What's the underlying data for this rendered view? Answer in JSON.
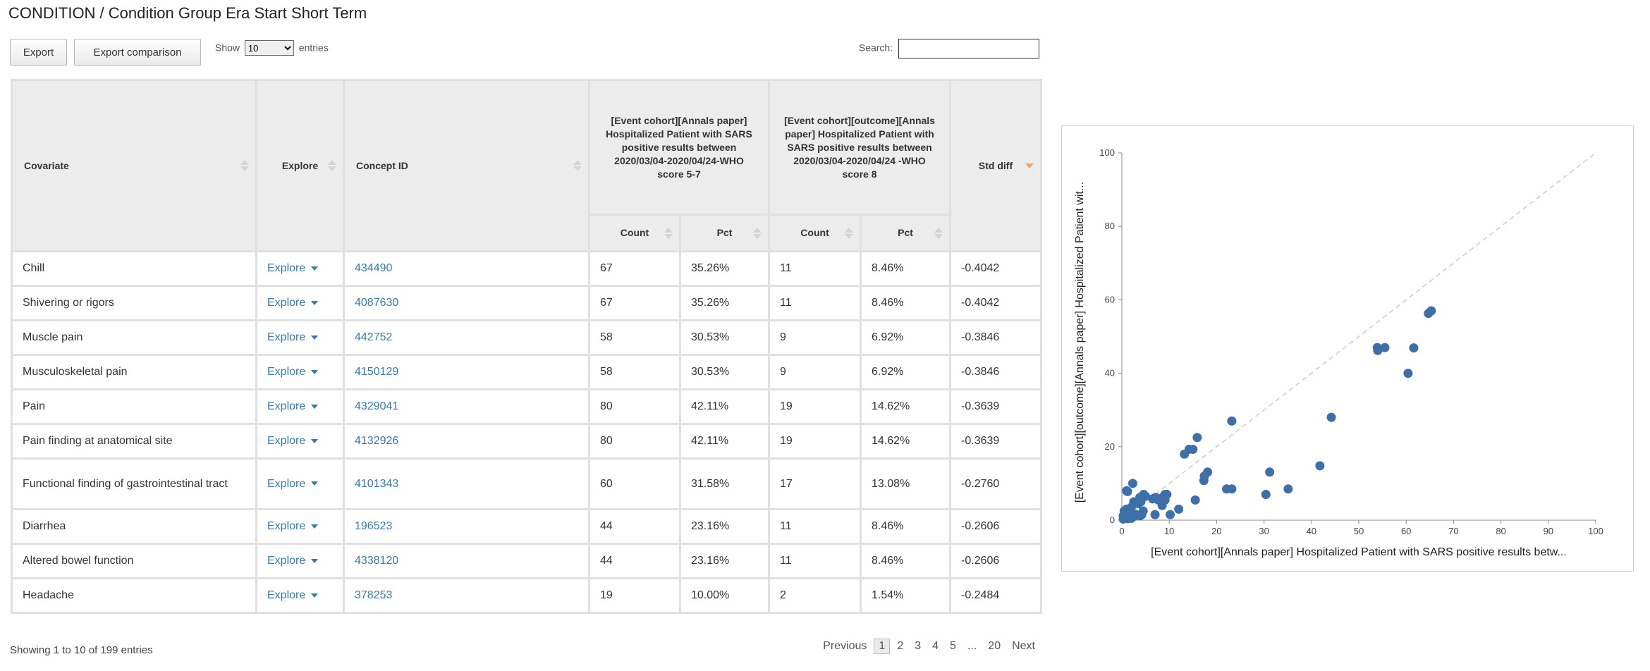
{
  "page": {
    "title": "CONDITION / Condition Group Era Start Short Term"
  },
  "toolbar": {
    "export_label": "Export",
    "export_comparison_label": "Export comparison",
    "show_label": "Show",
    "entries_value": "10",
    "entries_label": "entries",
    "search_label": "Search:",
    "search_value": ""
  },
  "table": {
    "headers": {
      "covariate": "Covariate",
      "explore": "Explore",
      "concept_id": "Concept ID",
      "cohort1": "[Event cohort][Annals paper] Hospitalized Patient with SARS positive results between 2020/03/04-2020/04/24-WHO score 5-7",
      "cohort2": "[Event cohort][outcome][Annals paper] Hospitalized Patient with SARS positive results between 2020/03/04-2020/04/24 -WHO score 8",
      "std_diff": "Std diff",
      "count": "Count",
      "pct": "Pct"
    },
    "rows": [
      {
        "covariate": "Chill",
        "explore": "Explore",
        "concept_id": "434490",
        "count1": "67",
        "pct1": "35.26%",
        "count2": "11",
        "pct2": "8.46%",
        "std_diff": "-0.4042"
      },
      {
        "covariate": "Shivering or rigors",
        "explore": "Explore",
        "concept_id": "4087630",
        "count1": "67",
        "pct1": "35.26%",
        "count2": "11",
        "pct2": "8.46%",
        "std_diff": "-0.4042"
      },
      {
        "covariate": "Muscle pain",
        "explore": "Explore",
        "concept_id": "442752",
        "count1": "58",
        "pct1": "30.53%",
        "count2": "9",
        "pct2": "6.92%",
        "std_diff": "-0.3846"
      },
      {
        "covariate": "Musculoskeletal pain",
        "explore": "Explore",
        "concept_id": "4150129",
        "count1": "58",
        "pct1": "30.53%",
        "count2": "9",
        "pct2": "6.92%",
        "std_diff": "-0.3846"
      },
      {
        "covariate": "Pain",
        "explore": "Explore",
        "concept_id": "4329041",
        "count1": "80",
        "pct1": "42.11%",
        "count2": "19",
        "pct2": "14.62%",
        "std_diff": "-0.3639"
      },
      {
        "covariate": "Pain finding at anatomical site",
        "explore": "Explore",
        "concept_id": "4132926",
        "count1": "80",
        "pct1": "42.11%",
        "count2": "19",
        "pct2": "14.62%",
        "std_diff": "-0.3639"
      },
      {
        "covariate": "Functional finding of gastrointestinal tract",
        "explore": "Explore",
        "concept_id": "4101343",
        "count1": "60",
        "pct1": "31.58%",
        "count2": "17",
        "pct2": "13.08%",
        "std_diff": "-0.2760"
      },
      {
        "covariate": "Diarrhea",
        "explore": "Explore",
        "concept_id": "196523",
        "count1": "44",
        "pct1": "23.16%",
        "count2": "11",
        "pct2": "8.46%",
        "std_diff": "-0.2606"
      },
      {
        "covariate": "Altered bowel function",
        "explore": "Explore",
        "concept_id": "4338120",
        "count1": "44",
        "pct1": "23.16%",
        "count2": "11",
        "pct2": "8.46%",
        "std_diff": "-0.2606"
      },
      {
        "covariate": "Headache",
        "explore": "Explore",
        "concept_id": "378253",
        "count1": "19",
        "pct1": "10.00%",
        "count2": "2",
        "pct2": "1.54%",
        "std_diff": "-0.2484"
      }
    ]
  },
  "footer": {
    "info": "Showing 1 to 10 of 199 entries",
    "pagination": {
      "previous": "Previous",
      "pages": [
        "1",
        "2",
        "3",
        "4",
        "5",
        "...",
        "20"
      ],
      "current": "1",
      "next": "Next"
    }
  },
  "chart_data": {
    "type": "scatter",
    "xlabel": "[Event cohort][Annals paper] Hospitalized Patient with SARS positive results betw...",
    "ylabel": "[Event cohort][outcome][Annals paper] Hospitalized Patient wit...",
    "xlim": [
      0,
      100
    ],
    "ylim": [
      0,
      100
    ],
    "xticks": [
      0,
      10,
      20,
      30,
      40,
      50,
      60,
      70,
      80,
      90,
      100
    ],
    "yticks": [
      0,
      20,
      40,
      60,
      80,
      100
    ],
    "reference_line": "y = x (dashed)",
    "point_color": "#3d6fa8",
    "points": [
      [
        65.3,
        57.0
      ],
      [
        64.7,
        56.3
      ],
      [
        53.9,
        47.0
      ],
      [
        55.5,
        47.0
      ],
      [
        54.0,
        46.2
      ],
      [
        61.6,
        46.9
      ],
      [
        60.4,
        40.0
      ],
      [
        44.2,
        28.0
      ],
      [
        23.2,
        27.0
      ],
      [
        41.8,
        14.8
      ],
      [
        15.9,
        22.5
      ],
      [
        14.2,
        19.3
      ],
      [
        15.0,
        19.3
      ],
      [
        13.2,
        18.0
      ],
      [
        18.1,
        13.1
      ],
      [
        17.4,
        12.0
      ],
      [
        17.3,
        10.8
      ],
      [
        31.2,
        13.1
      ],
      [
        22.1,
        8.5
      ],
      [
        23.2,
        8.5
      ],
      [
        35.1,
        8.5
      ],
      [
        30.4,
        7.0
      ],
      [
        15.5,
        5.5
      ],
      [
        9.1,
        7.0
      ],
      [
        8.4,
        6.0
      ],
      [
        7.1,
        6.2
      ],
      [
        7.7,
        5.5
      ],
      [
        9.1,
        5.5
      ],
      [
        4.6,
        7.0
      ],
      [
        3.8,
        6.2
      ],
      [
        4.0,
        5.0
      ],
      [
        1.0,
        8.0
      ],
      [
        1.2,
        7.8
      ],
      [
        2.3,
        10.0
      ],
      [
        5.0,
        6.5
      ],
      [
        6.5,
        5.8
      ],
      [
        2.5,
        5.0
      ],
      [
        3.5,
        4.5
      ],
      [
        2.0,
        3.5
      ],
      [
        1.0,
        3.0
      ],
      [
        0.5,
        2.5
      ],
      [
        1.5,
        2.5
      ],
      [
        0.8,
        1.8
      ],
      [
        0.3,
        1.2
      ],
      [
        1.8,
        1.2
      ],
      [
        2.5,
        1.0
      ],
      [
        3.0,
        1.5
      ],
      [
        3.8,
        1.2
      ],
      [
        4.2,
        1.5
      ],
      [
        7.0,
        1.5
      ],
      [
        10.2,
        1.5
      ],
      [
        1.2,
        0.4
      ],
      [
        0.3,
        0.3
      ],
      [
        2.0,
        0.5
      ],
      [
        4.5,
        2.5
      ],
      [
        9.5,
        7.0
      ],
      [
        8.5,
        4.0
      ],
      [
        12.0,
        3.0
      ]
    ]
  }
}
